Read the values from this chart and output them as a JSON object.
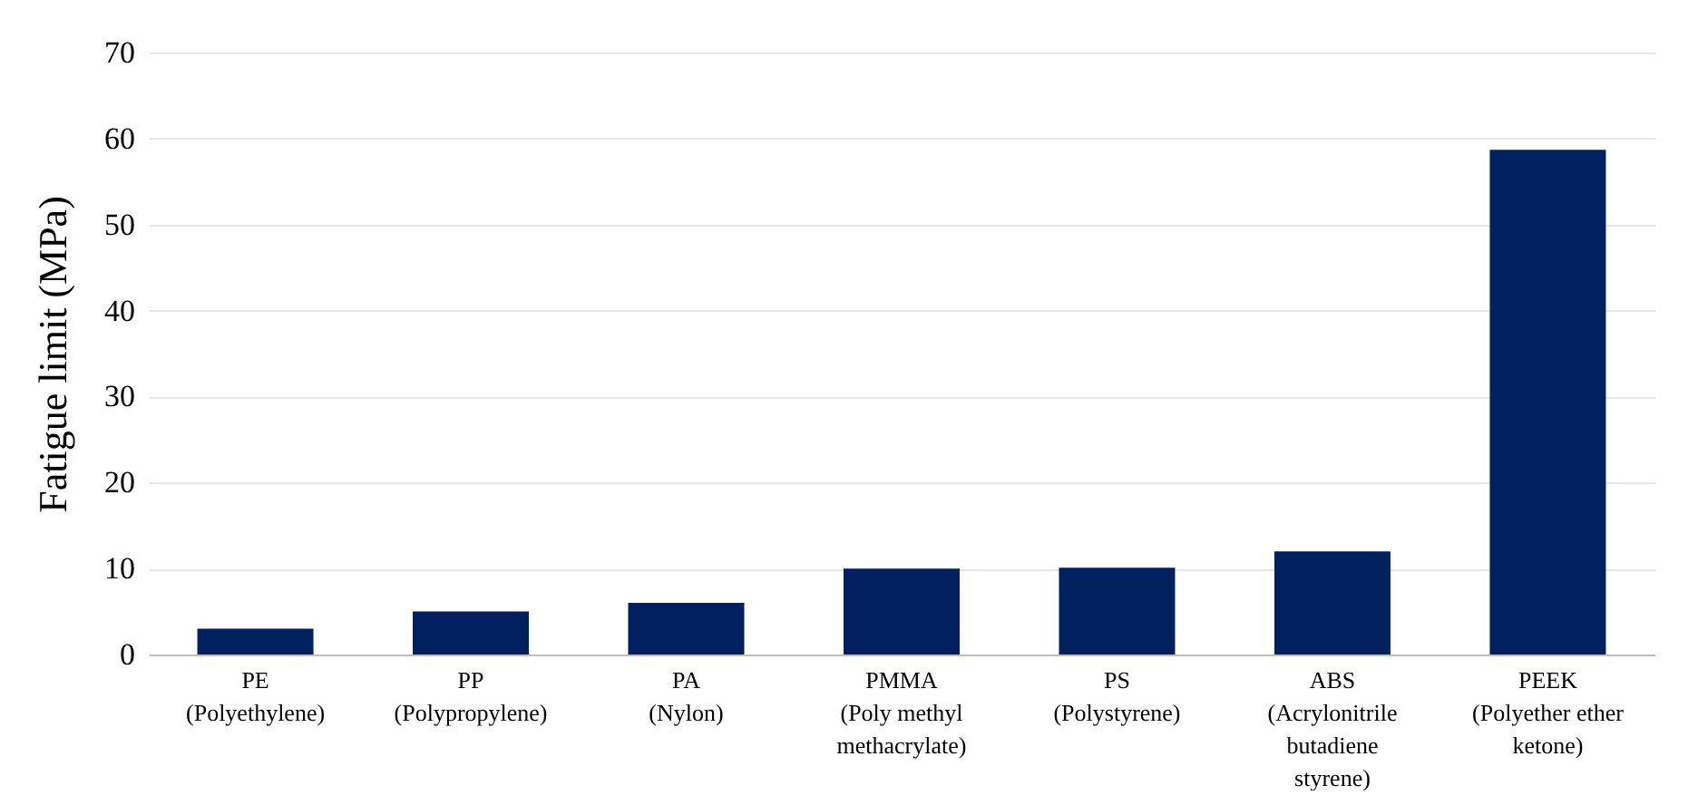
{
  "chart_data": {
    "type": "bar",
    "ylabel": "Fatigue limit (MPa)",
    "categories": [
      "PE\n(Polyethylene)",
      "PP\n(Polypropylene)",
      "PA\n(Nylon)",
      "PMMA\n(Poly methyl\nmethacrylate)",
      "PS\n(Polystyrene)",
      "ABS\n(Acrylonitrile\nbutadiene\nstyrene)",
      "PEEK\n(Polyether ether\nketone)"
    ],
    "values": [
      3,
      5,
      6,
      10,
      10.1,
      12,
      58.7
    ],
    "color": "#002060",
    "ylim": [
      0,
      70
    ],
    "yticks": [
      0,
      10,
      20,
      30,
      40,
      50,
      60,
      70
    ],
    "grid": "y"
  }
}
